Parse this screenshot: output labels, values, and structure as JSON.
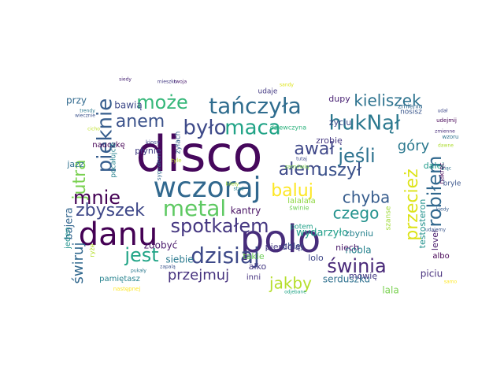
{
  "words": [
    {
      "text": "disco",
      "color": "#46085c"
    },
    {
      "text": "polo",
      "color": "#472d7b"
    },
    {
      "text": "danu",
      "color": "#440154"
    },
    {
      "text": "wczoraj",
      "color": "#31688e"
    },
    {
      "text": "tańczyła",
      "color": "#2f6c8e"
    },
    {
      "text": "może",
      "color": "#35b779"
    },
    {
      "text": "było",
      "color": "#3e4a89"
    },
    {
      "text": "maca",
      "color": "#20a386"
    },
    {
      "text": "hukNął",
      "color": "#2a788e"
    },
    {
      "text": "kieliszek",
      "color": "#2c728e"
    },
    {
      "text": "anem",
      "color": "#3b528b"
    },
    {
      "text": "pięknie",
      "color": "#365d8d"
    },
    {
      "text": "awał",
      "color": "#3f4889"
    },
    {
      "text": "jeśli",
      "color": "#2c718e"
    },
    {
      "text": "góry",
      "color": "#2a788e"
    },
    {
      "text": "jutra",
      "color": "#7ad151"
    },
    {
      "text": "mnie",
      "color": "#440154"
    },
    {
      "text": "ałem",
      "color": "#3e4989"
    },
    {
      "text": "uszył",
      "color": "#3b528b"
    },
    {
      "text": "robiłem",
      "color": "#31688e"
    },
    {
      "text": "przecież",
      "color": "#dde318"
    },
    {
      "text": "metal",
      "color": "#5ec962"
    },
    {
      "text": "baluj",
      "color": "#fde725"
    },
    {
      "text": "chyba",
      "color": "#365c8d"
    },
    {
      "text": "zbyszek",
      "color": "#3f4889"
    },
    {
      "text": "spotkałem",
      "color": "#453781"
    },
    {
      "text": "czego",
      "color": "#21918c"
    },
    {
      "text": "jest",
      "color": "#20a486"
    },
    {
      "text": "dzisiaj",
      "color": "#3e4a89"
    },
    {
      "text": "świnia",
      "color": "#482878"
    },
    {
      "text": "świruj",
      "color": "#31688e"
    },
    {
      "text": "przejmuj",
      "color": "#46327e"
    },
    {
      "text": "jakby",
      "color": "#b5de2b"
    },
    {
      "text": "kantry",
      "color": "#471063"
    },
    {
      "text": "wydarzyło",
      "color": "#1f9e89"
    },
    {
      "text": "bajera",
      "color": "#32658e"
    },
    {
      "text": "zdobyć",
      "color": "#48186a"
    },
    {
      "text": "siebie",
      "color": "#29798e"
    },
    {
      "text": "takie",
      "color": "#6ece58"
    },
    {
      "text": "chlej",
      "color": "#3b528b"
    },
    {
      "text": "zbyniu",
      "color": "#26828e"
    },
    {
      "text": "nobla",
      "color": "#26828e"
    },
    {
      "text": "lolo",
      "color": "#3f4788"
    },
    {
      "text": "alko",
      "color": "#443983"
    },
    {
      "text": "inni",
      "color": "#46337f"
    },
    {
      "text": "lala",
      "color": "#7ad151"
    },
    {
      "text": "serduszku",
      "color": "#2d708e"
    },
    {
      "text": "piciu",
      "color": "#472f7d"
    },
    {
      "text": "albo",
      "color": "#440154"
    },
    {
      "text": "level",
      "color": "#481a6c"
    },
    {
      "text": "testosteron",
      "color": "#21918c"
    },
    {
      "text": "pamiętasz",
      "color": "#26828e"
    },
    {
      "text": "następnej",
      "color": "#fde725"
    },
    {
      "text": "odjebane",
      "color": "#20a486"
    },
    {
      "text": "potem",
      "color": "#1fa088"
    },
    {
      "text": "pierdolą",
      "color": "#443a83"
    },
    {
      "text": "dziewczyna",
      "color": "#2db27d"
    },
    {
      "text": "niech",
      "color": "#481769"
    },
    {
      "text": "zrobię",
      "color": "#453882"
    },
    {
      "text": "życiu",
      "color": "#3e4c8a"
    },
    {
      "text": "dupy",
      "color": "#482173"
    },
    {
      "text": "dalej",
      "color": "#1f9a8a"
    },
    {
      "text": "nakręc",
      "color": "#440154"
    },
    {
      "text": "bryle",
      "color": "#3a548c"
    },
    {
      "text": "nosisz",
      "color": "#39568c"
    },
    {
      "text": "mówię",
      "color": "#443983"
    },
    {
      "text": "szanse",
      "color": "#a0da39"
    },
    {
      "text": "świnie",
      "color": "#73d056"
    },
    {
      "text": "lalalala",
      "color": "#8fd744"
    },
    {
      "text": "zyłach",
      "color": "#34618d"
    },
    {
      "text": "nauczkę",
      "color": "#440154"
    },
    {
      "text": "pocałujcie",
      "color": "#26828e"
    },
    {
      "text": "płynie",
      "color": "#424086"
    },
    {
      "text": "bawią",
      "color": "#3e4a89"
    },
    {
      "text": "przy",
      "color": "#30698e"
    },
    {
      "text": "jazz",
      "color": "#2d708e"
    },
    {
      "text": "jeden",
      "color": "#21918c"
    },
    {
      "text": "ryże",
      "color": "#b5de2b"
    },
    {
      "text": "udaje",
      "color": "#443a83"
    },
    {
      "text": "siedy",
      "color": "#482475"
    },
    {
      "text": "twoja",
      "color": "#481a6c"
    },
    {
      "text": "sandy",
      "color": "#dde318"
    },
    {
      "text": "trendy",
      "color": "#2a788e"
    },
    {
      "text": "wiecznie",
      "color": "#3b528b"
    },
    {
      "text": "cicho",
      "color": "#bddf26"
    },
    {
      "text": "zmienne",
      "color": "#472d7b"
    },
    {
      "text": "udał",
      "color": "#3f4889"
    },
    {
      "text": "udejmij",
      "color": "#440154"
    },
    {
      "text": "wzoru",
      "color": "#2c728e"
    },
    {
      "text": "kiosy",
      "color": "#3e4a89"
    },
    {
      "text": "sygnałem",
      "color": "#31688e"
    },
    {
      "text": "bilety",
      "color": "#a8db34"
    },
    {
      "text": "stąd",
      "color": "#26828e"
    },
    {
      "text": "mieszko",
      "color": "#443a83"
    },
    {
      "text": "dawne",
      "color": "#addc30"
    },
    {
      "text": "zmienia",
      "color": "#31688e"
    },
    {
      "text": "kiedy",
      "color": "#365c8d"
    },
    {
      "text": "kiąc",
      "color": "#2c728e"
    },
    {
      "text": "udajemy",
      "color": "#39568c"
    },
    {
      "text": "samo",
      "color": "#fde725"
    },
    {
      "text": "pukały",
      "color": "#2a788e"
    },
    {
      "text": "zapalą",
      "color": "#3b528b"
    },
    {
      "text": "tyle",
      "color": "#bddf26"
    },
    {
      "text": "zamówię",
      "color": "#7fd34e"
    },
    {
      "text": "tutaj",
      "color": "#3e4989"
    }
  ]
}
